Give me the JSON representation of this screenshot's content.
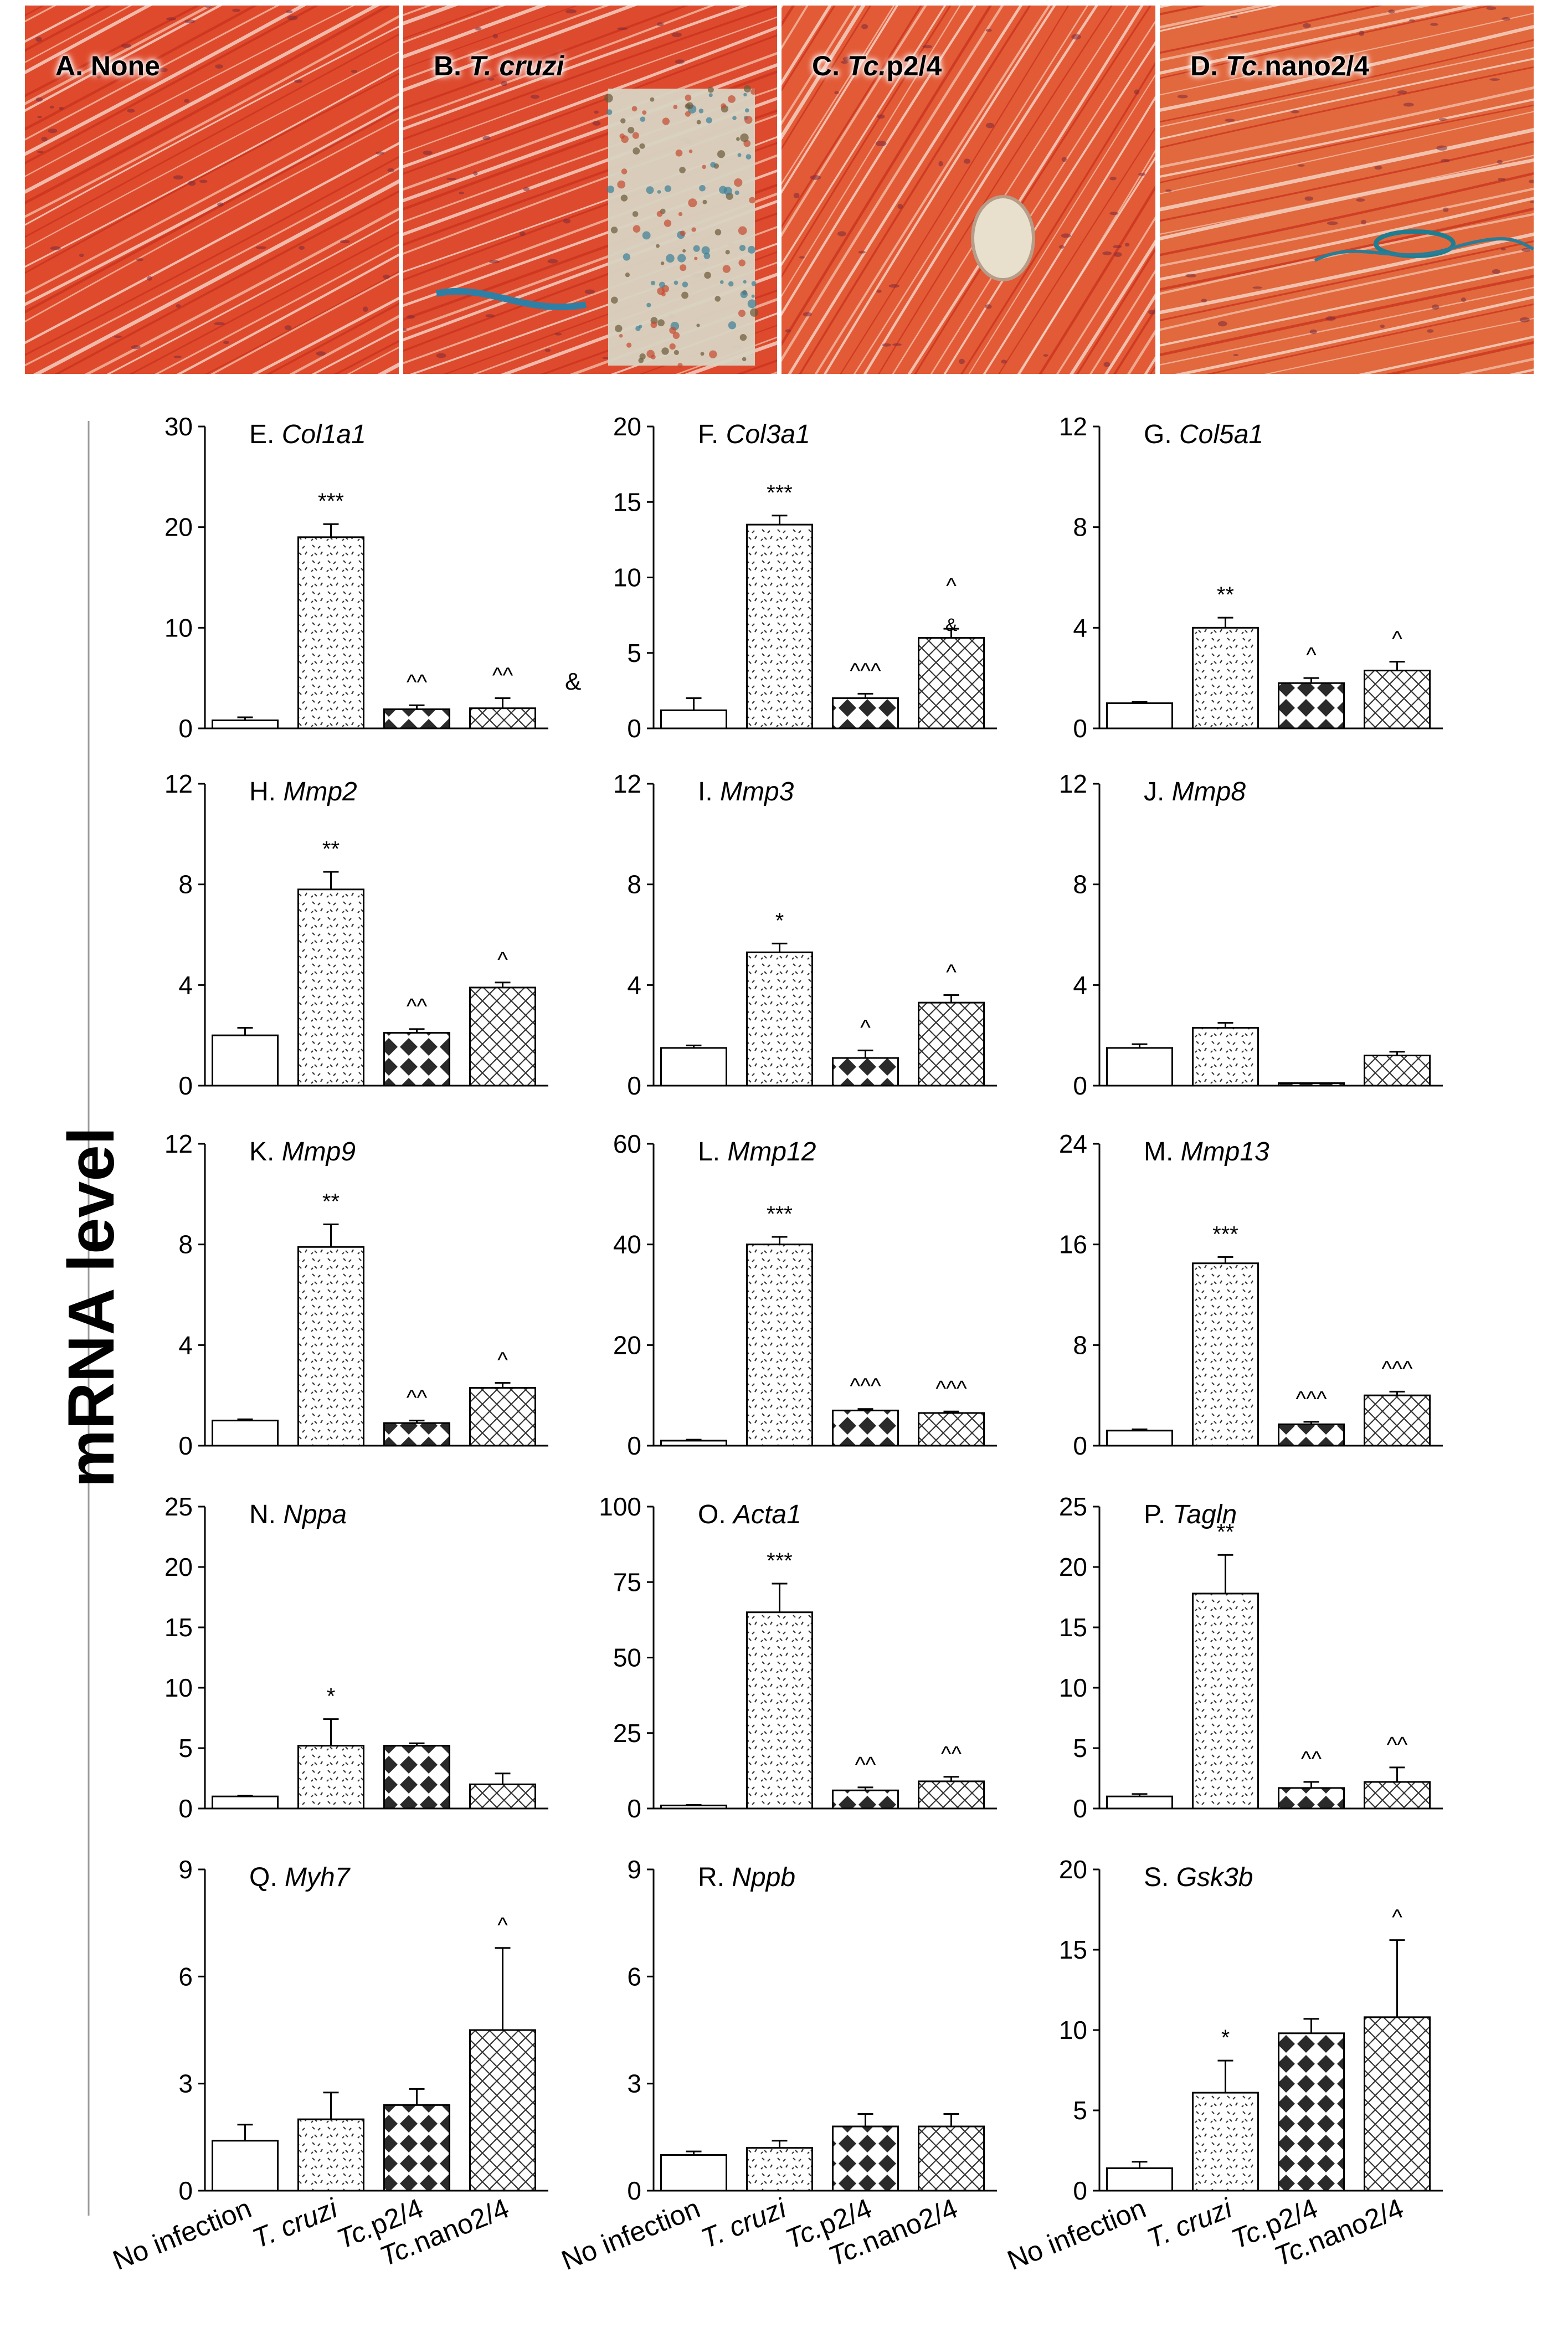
{
  "figure": {
    "y_axis_title": "mRNA level",
    "categories": [
      "No infection",
      "T. cruzi",
      "Tc.p2/4",
      "Tc.nano2/4"
    ]
  },
  "histology_panels": [
    {
      "letter": "A.",
      "label": "None",
      "italic": false,
      "color": "#e04a2c"
    },
    {
      "letter": "B.",
      "label": "T. cruzi",
      "italic": true,
      "color": "#de4a2e"
    },
    {
      "letter": "C.",
      "label": "Tc.p2/4",
      "italic": true,
      "color": "#e35a36",
      "prefix": "Tc.",
      "suffix": "p2/4"
    },
    {
      "letter": "D.",
      "label": "Tc.nano2/4",
      "italic": true,
      "color": "#e2683e",
      "prefix": "Tc.",
      "suffix": "nano2/4"
    }
  ],
  "colors": {
    "bar_stroke": "#000000",
    "axis": "#000000",
    "fill": "#ffffff"
  },
  "chart_data": [
    {
      "type": "bar",
      "title_letter": "E.",
      "title_gene": "Col1a1",
      "yticks": [
        0,
        10,
        20,
        30
      ],
      "ylim": [
        0,
        30
      ],
      "values": [
        0.8,
        19.0,
        1.9,
        2.0
      ],
      "errors": [
        0.3,
        1.3,
        0.4,
        1.0
      ],
      "annotations": [
        "",
        "***",
        "^^",
        "^^"
      ],
      "extra": "&"
    },
    {
      "type": "bar",
      "title_letter": "F.",
      "title_gene": "Col3a1",
      "yticks": [
        0,
        5,
        10,
        15,
        20
      ],
      "ylim": [
        0,
        20
      ],
      "values": [
        1.2,
        13.5,
        2.0,
        6.0
      ],
      "errors": [
        0.8,
        0.6,
        0.3,
        0.6
      ],
      "annotations": [
        "",
        "***",
        "^^^",
        "^"
      ],
      "extra2": "&"
    },
    {
      "type": "bar",
      "title_letter": "G.",
      "title_gene": "Col5a1",
      "yticks": [
        0,
        4,
        8,
        12
      ],
      "ylim": [
        0,
        12
      ],
      "values": [
        1.0,
        4.0,
        1.8,
        2.3
      ],
      "errors": [
        0.05,
        0.4,
        0.2,
        0.35
      ],
      "annotations": [
        "",
        "**",
        "^",
        "^"
      ]
    },
    {
      "type": "bar",
      "title_letter": "H.",
      "title_gene": "Mmp2",
      "yticks": [
        0,
        4,
        8,
        12
      ],
      "ylim": [
        0,
        12
      ],
      "values": [
        2.0,
        7.8,
        2.1,
        3.9
      ],
      "errors": [
        0.3,
        0.7,
        0.15,
        0.2
      ],
      "annotations": [
        "",
        "**",
        "^^",
        "^"
      ]
    },
    {
      "type": "bar",
      "title_letter": "I.",
      "title_gene": "Mmp3",
      "yticks": [
        0,
        4,
        8,
        12
      ],
      "ylim": [
        0,
        12
      ],
      "values": [
        1.5,
        5.3,
        1.1,
        3.3
      ],
      "errors": [
        0.1,
        0.35,
        0.3,
        0.3
      ],
      "annotations": [
        "",
        "*",
        "^",
        "^"
      ]
    },
    {
      "type": "bar",
      "title_letter": "J.",
      "title_gene": "Mmp8",
      "yticks": [
        0,
        4,
        8,
        12
      ],
      "ylim": [
        0,
        12
      ],
      "values": [
        1.5,
        2.3,
        0.1,
        1.2
      ],
      "errors": [
        0.15,
        0.2,
        0.0,
        0.15
      ],
      "annotations": [
        "",
        "",
        "",
        ""
      ]
    },
    {
      "type": "bar",
      "title_letter": "K.",
      "title_gene": "Mmp9",
      "yticks": [
        0,
        4,
        8,
        12
      ],
      "ylim": [
        0,
        12
      ],
      "values": [
        1.0,
        7.9,
        0.9,
        2.3
      ],
      "errors": [
        0.05,
        0.9,
        0.1,
        0.2
      ],
      "annotations": [
        "",
        "**",
        "^^",
        "^"
      ]
    },
    {
      "type": "bar",
      "title_letter": "L.",
      "title_gene": "Mmp12",
      "yticks": [
        0,
        20,
        40,
        60
      ],
      "ylim": [
        0,
        60
      ],
      "values": [
        1.0,
        40.0,
        7.0,
        6.5
      ],
      "errors": [
        0.2,
        1.5,
        0.3,
        0.3
      ],
      "annotations": [
        "",
        "***",
        "^^^",
        "^^^"
      ]
    },
    {
      "type": "bar",
      "title_letter": "M.",
      "title_gene": "Mmp13",
      "yticks": [
        0,
        8,
        16,
        24
      ],
      "ylim": [
        0,
        24
      ],
      "values": [
        1.2,
        14.5,
        1.7,
        4.0
      ],
      "errors": [
        0.1,
        0.5,
        0.2,
        0.3
      ],
      "annotations": [
        "",
        "***",
        "^^^",
        "^^^"
      ]
    },
    {
      "type": "bar",
      "title_letter": "N.",
      "title_gene": "Nppa",
      "yticks": [
        0,
        5,
        10,
        15,
        20,
        25
      ],
      "ylim": [
        0,
        25
      ],
      "values": [
        1.0,
        5.2,
        5.2,
        2.0
      ],
      "errors": [
        0.05,
        2.2,
        0.2,
        0.9
      ],
      "annotations": [
        "",
        "*",
        "",
        ""
      ]
    },
    {
      "type": "bar",
      "title_letter": "O.",
      "title_gene": "Acta1",
      "yticks": [
        0,
        25,
        50,
        75,
        100
      ],
      "ylim": [
        0,
        100
      ],
      "values": [
        1.0,
        65.0,
        6.0,
        9.0
      ],
      "errors": [
        0.2,
        9.5,
        1.0,
        1.5
      ],
      "annotations": [
        "",
        "***",
        "^^",
        "^^"
      ]
    },
    {
      "type": "bar",
      "title_letter": "P.",
      "title_gene": "Tagln",
      "yticks": [
        0,
        5,
        10,
        15,
        20,
        25
      ],
      "ylim": [
        0,
        25
      ],
      "values": [
        1.0,
        17.8,
        1.7,
        2.2
      ],
      "errors": [
        0.2,
        3.2,
        0.5,
        1.2
      ],
      "annotations": [
        "",
        "**",
        "^^",
        "^^"
      ]
    },
    {
      "type": "bar",
      "title_letter": "Q.",
      "title_gene": "Myh7",
      "yticks": [
        0,
        3,
        6,
        9
      ],
      "ylim": [
        0,
        9
      ],
      "values": [
        1.4,
        2.0,
        2.4,
        4.5
      ],
      "errors": [
        0.45,
        0.75,
        0.45,
        2.3
      ],
      "annotations": [
        "",
        "",
        "",
        "^"
      ]
    },
    {
      "type": "bar",
      "title_letter": "R.",
      "title_gene": "Nppb",
      "yticks": [
        0,
        3,
        6,
        9
      ],
      "ylim": [
        0,
        9
      ],
      "values": [
        1.0,
        1.2,
        1.8,
        1.8
      ],
      "errors": [
        0.1,
        0.2,
        0.35,
        0.35
      ],
      "annotations": [
        "",
        "",
        "",
        ""
      ]
    },
    {
      "type": "bar",
      "title_letter": "S.",
      "title_gene": "Gsk3b",
      "yticks": [
        0,
        5,
        10,
        15,
        20
      ],
      "ylim": [
        0,
        20
      ],
      "values": [
        1.4,
        6.1,
        9.8,
        10.8
      ],
      "errors": [
        0.4,
        2.0,
        0.9,
        4.8
      ],
      "annotations": [
        "",
        "*",
        "",
        "^"
      ]
    }
  ]
}
